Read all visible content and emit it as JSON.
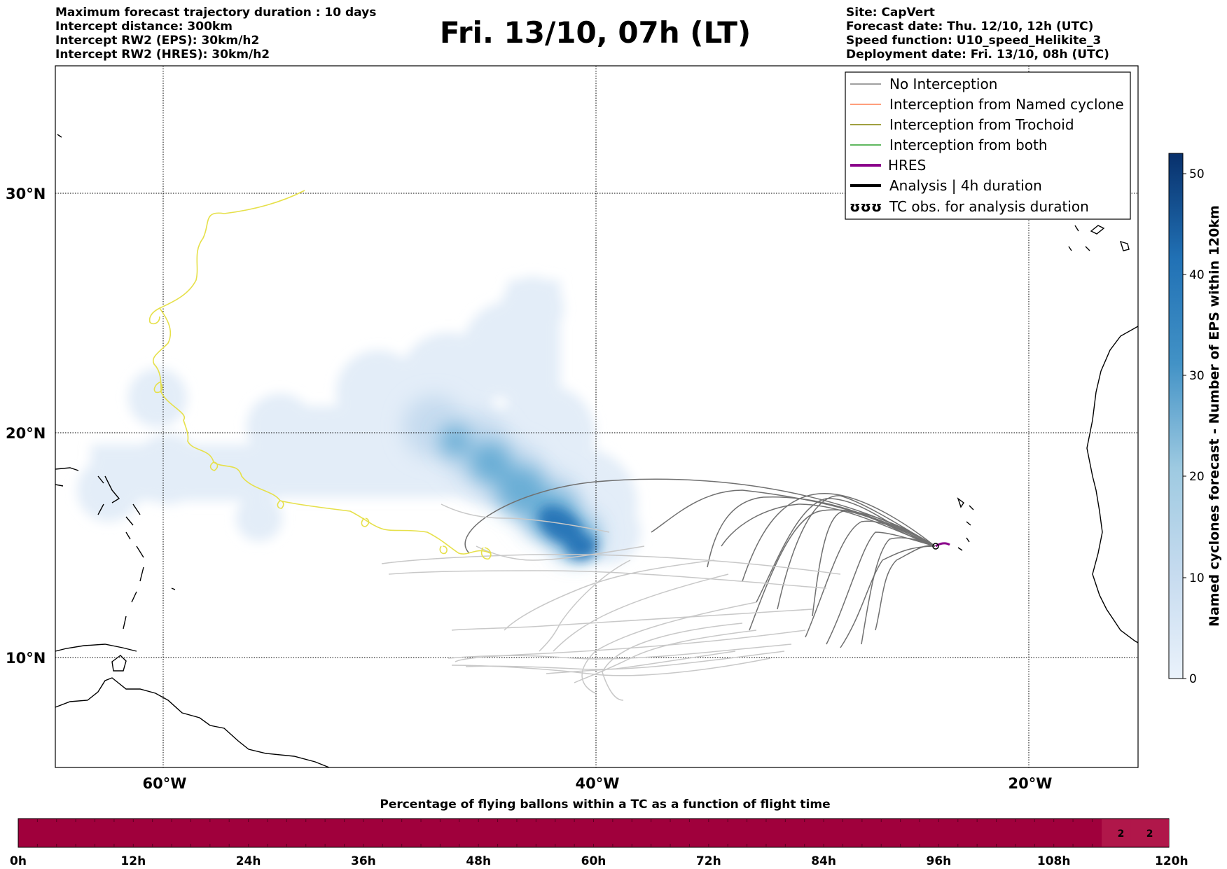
{
  "header": {
    "left": [
      "Maximum forecast trajectory duration : 10 days",
      "Intercept distance: 300km",
      "Intercept RW2 (EPS):  30km/h2",
      "Intercept RW2 (HRES): 30km/h2"
    ],
    "title": "Fri. 13/10, 07h (LT)",
    "right": [
      "Site: CapVert",
      "Forecast date: Thu. 12/10, 12h (UTC)",
      "Speed function: U10_speed_Helikite_3",
      "Deployment date: Fri. 13/10, 08h (UTC)"
    ]
  },
  "map": {
    "lat_labels": [
      {
        "lat": 30,
        "label": "30°N"
      },
      {
        "lat": 20,
        "label": "20°N"
      },
      {
        "lat": 10,
        "label": "10°N"
      }
    ],
    "lon_labels": [
      {
        "lon": -60,
        "label": "60°W"
      },
      {
        "lon": -40,
        "label": "40°W"
      },
      {
        "lon": -20,
        "label": "20°W"
      }
    ],
    "lon_range": [
      -65,
      -15
    ],
    "lat_range": [
      5.3,
      34.6
    ],
    "colors": {
      "no_interception": "#808080",
      "named_cyclone": "#ff7f50",
      "trochoid": "#808000",
      "both": "#2ca02c",
      "hres": "#8b008b",
      "analysis": "#000000",
      "tc_track": "#e6e04a",
      "density": "#2171b5"
    }
  },
  "legend": {
    "items": [
      {
        "label": "No Interception",
        "color": "#808080",
        "style": "thin"
      },
      {
        "label": "Interception from Named cyclone",
        "color": "#ff7f50",
        "style": "thin"
      },
      {
        "label": "Interception from Trochoid",
        "color": "#808000",
        "style": "thin"
      },
      {
        "label": "Interception from both",
        "color": "#2ca02c",
        "style": "thin"
      },
      {
        "label": "HRES",
        "color": "#8b008b",
        "style": "thick"
      },
      {
        "label": "Analysis | 4h duration",
        "color": "#000000",
        "style": "thick"
      },
      {
        "label": "TC obs. for analysis duration",
        "color": "#000000",
        "style": "symbol"
      }
    ],
    "symbol_text": "ʊʊʊ"
  },
  "colorbar": {
    "label": "Named cyclones forecast - Number of EPS within 120km",
    "ticks": [
      0,
      10,
      20,
      30,
      40,
      50
    ],
    "range": [
      0,
      52
    ]
  },
  "flight_bar": {
    "title": "Percentage of flying ballons within a TC as a function of flight time",
    "tick_labels": [
      "0h",
      "12h",
      "24h",
      "36h",
      "48h",
      "60h",
      "72h",
      "84h",
      "96h",
      "108h",
      "120h"
    ],
    "cells": 60,
    "fill_color": "#a0003c",
    "value_labels": [
      {
        "hour": 115,
        "text": "2"
      },
      {
        "hour": 118,
        "text": "2"
      }
    ]
  }
}
